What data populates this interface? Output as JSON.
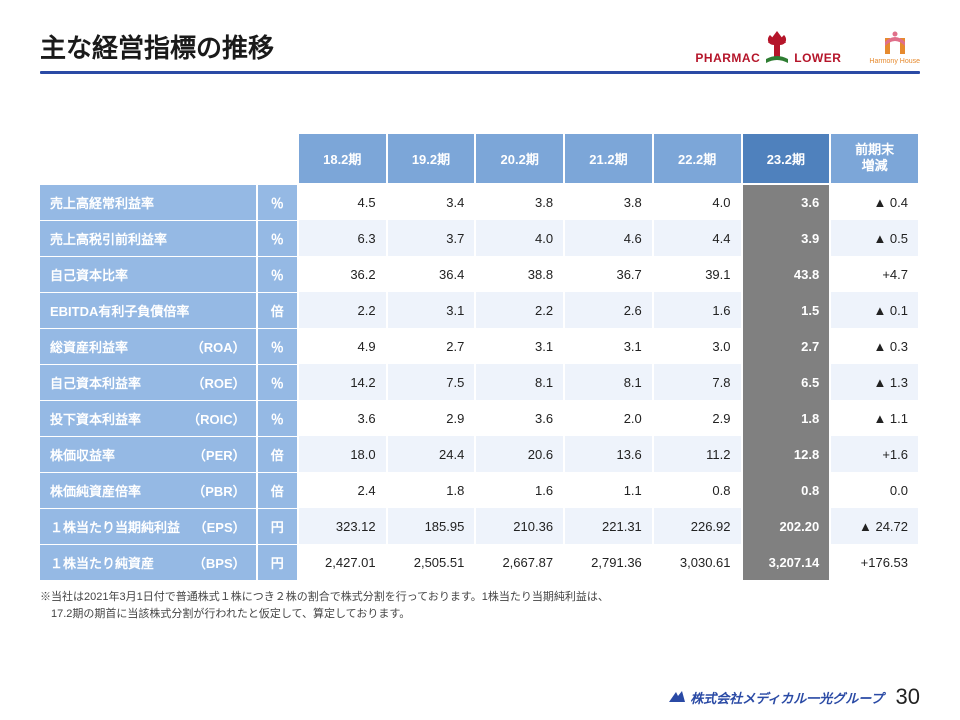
{
  "title": "主な経営指標の推移",
  "logos": {
    "pharmac_left": "PHARMAC",
    "pharmac_right": "LOWER",
    "hh": "Harmony House"
  },
  "columns": [
    "18.2期",
    "19.2期",
    "20.2期",
    "21.2期",
    "22.2期",
    "23.2期",
    "前期末\n増減"
  ],
  "current_col_index": 5,
  "rows": [
    {
      "label": "売上高経常利益率",
      "abbr": "",
      "unit": "％",
      "v": [
        "4.5",
        "3.4",
        "3.8",
        "3.8",
        "4.0",
        "3.6"
      ],
      "diff": "▲ 0.4"
    },
    {
      "label": "売上高税引前利益率",
      "abbr": "",
      "unit": "％",
      "v": [
        "6.3",
        "3.7",
        "4.0",
        "4.6",
        "4.4",
        "3.9"
      ],
      "diff": "▲ 0.5"
    },
    {
      "label": "自己資本比率",
      "abbr": "",
      "unit": "％",
      "v": [
        "36.2",
        "36.4",
        "38.8",
        "36.7",
        "39.1",
        "43.8"
      ],
      "diff": "+4.7"
    },
    {
      "label": "EBITDA有利子負債倍率",
      "abbr": "",
      "unit": "倍",
      "v": [
        "2.2",
        "3.1",
        "2.2",
        "2.6",
        "1.6",
        "1.5"
      ],
      "diff": "▲ 0.1"
    },
    {
      "label": "総資産利益率",
      "abbr": "（ROA）",
      "unit": "％",
      "v": [
        "4.9",
        "2.7",
        "3.1",
        "3.1",
        "3.0",
        "2.7"
      ],
      "diff": "▲ 0.3"
    },
    {
      "label": "自己資本利益率",
      "abbr": "（ROE）",
      "unit": "％",
      "v": [
        "14.2",
        "7.5",
        "8.1",
        "8.1",
        "7.8",
        "6.5"
      ],
      "diff": "▲ 1.3"
    },
    {
      "label": "投下資本利益率",
      "abbr": "（ROIC）",
      "unit": "％",
      "v": [
        "3.6",
        "2.9",
        "3.6",
        "2.0",
        "2.9",
        "1.8"
      ],
      "diff": "▲ 1.1"
    },
    {
      "label": "株価収益率",
      "abbr": "（PER）",
      "unit": "倍",
      "v": [
        "18.0",
        "24.4",
        "20.6",
        "13.6",
        "11.2",
        "12.8"
      ],
      "diff": "+1.6"
    },
    {
      "label": "株価純資産倍率",
      "abbr": "（PBR）",
      "unit": "倍",
      "v": [
        "2.4",
        "1.8",
        "1.6",
        "1.1",
        "0.8",
        "0.8"
      ],
      "diff": "0.0"
    },
    {
      "label": "１株当たり当期純利益",
      "abbr": "（EPS）",
      "unit": "円",
      "v": [
        "323.12",
        "185.95",
        "210.36",
        "221.31",
        "226.92",
        "202.20"
      ],
      "diff": "▲ 24.72"
    },
    {
      "label": "１株当たり純資産",
      "abbr": "（BPS）",
      "unit": "円",
      "v": [
        "2,427.01",
        "2,505.51",
        "2,667.87",
        "2,791.36",
        "3,030.61",
        "3,207.14"
      ],
      "diff": "+176.53"
    }
  ],
  "footnote_line1": "※当社は2021年3月1日付で普通株式１株につき２株の割合で株式分割を行っております。1株当たり当期純利益は、",
  "footnote_line2": "　17.2期の期首に当該株式分割が行われたと仮定して、算定しております。",
  "footer_company": "株式会社メディカル一光グループ",
  "page_number": "30",
  "colors": {
    "header_bg": "#7ca6d8",
    "header_current_bg": "#4f81bd",
    "row_label_bg": "#95b9e4",
    "row_even_bg": "#eef3fb",
    "current_cell_bg": "#808080",
    "rule": "#2a4aa5",
    "pharmac": "#b5152a",
    "hh_orange": "#e68a2e",
    "hh_pink": "#e06f8a"
  }
}
